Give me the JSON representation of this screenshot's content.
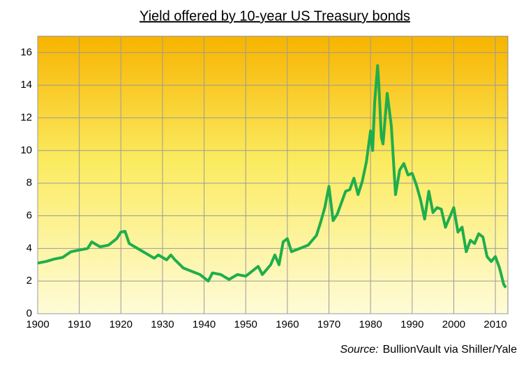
{
  "chart_data": {
    "type": "line",
    "title": "Yield offered by 10-year US Treasury bonds",
    "source_label": "Source:",
    "source_text": "BullionVault via Shiller/Yale",
    "color": "#1fae4b",
    "x": [
      1900,
      1902,
      1904,
      1906,
      1908,
      1910,
      1912,
      1913,
      1915,
      1917,
      1919,
      1920,
      1921,
      1922,
      1924,
      1926,
      1928,
      1929,
      1931,
      1932,
      1933,
      1935,
      1937,
      1939,
      1941,
      1942,
      1944,
      1946,
      1948,
      1950,
      1952,
      1953,
      1954,
      1956,
      1957,
      1958,
      1959,
      1960,
      1961,
      1963,
      1965,
      1967,
      1968,
      1969,
      1970,
      1971,
      1972,
      1973,
      1974,
      1975,
      1976,
      1977,
      1978,
      1979,
      1980,
      1980.5,
      1981,
      1981.7,
      1982,
      1982.6,
      1983,
      1984,
      1985,
      1986,
      1987,
      1988,
      1989,
      1990,
      1991,
      1992,
      1993,
      1994,
      1995,
      1996,
      1997,
      1998,
      1999,
      2000,
      2001,
      2002,
      2003,
      2004,
      2005,
      2006,
      2007,
      2008,
      2009,
      2010,
      2011,
      2012,
      2012.5
    ],
    "values": [
      3.1,
      3.2,
      3.35,
      3.45,
      3.8,
      3.9,
      4.0,
      4.4,
      4.1,
      4.2,
      4.6,
      5.0,
      5.05,
      4.3,
      4.0,
      3.7,
      3.4,
      3.6,
      3.3,
      3.6,
      3.3,
      2.8,
      2.6,
      2.4,
      2.0,
      2.5,
      2.4,
      2.1,
      2.4,
      2.3,
      2.7,
      2.9,
      2.4,
      3.0,
      3.6,
      3.0,
      4.4,
      4.6,
      3.8,
      4.0,
      4.2,
      4.8,
      5.6,
      6.5,
      7.8,
      5.7,
      6.1,
      6.8,
      7.5,
      7.6,
      8.3,
      7.3,
      8.1,
      9.3,
      11.2,
      10.0,
      13.0,
      15.2,
      14.0,
      10.8,
      10.4,
      13.5,
      11.5,
      7.3,
      8.8,
      9.2,
      8.5,
      8.6,
      7.9,
      7.0,
      5.8,
      7.5,
      6.2,
      6.5,
      6.4,
      5.3,
      5.9,
      6.5,
      5.0,
      5.3,
      3.8,
      4.5,
      4.3,
      4.9,
      4.7,
      3.5,
      3.2,
      3.5,
      2.8,
      1.8,
      1.6
    ],
    "xlim": [
      1900,
      2013
    ],
    "ylim": [
      0,
      17
    ],
    "xticks": [
      1900,
      1910,
      1920,
      1930,
      1940,
      1950,
      1960,
      1970,
      1980,
      1990,
      2000,
      2010
    ],
    "yticks": [
      0,
      2,
      4,
      6,
      8,
      10,
      12,
      14,
      16
    ],
    "grid": true
  }
}
